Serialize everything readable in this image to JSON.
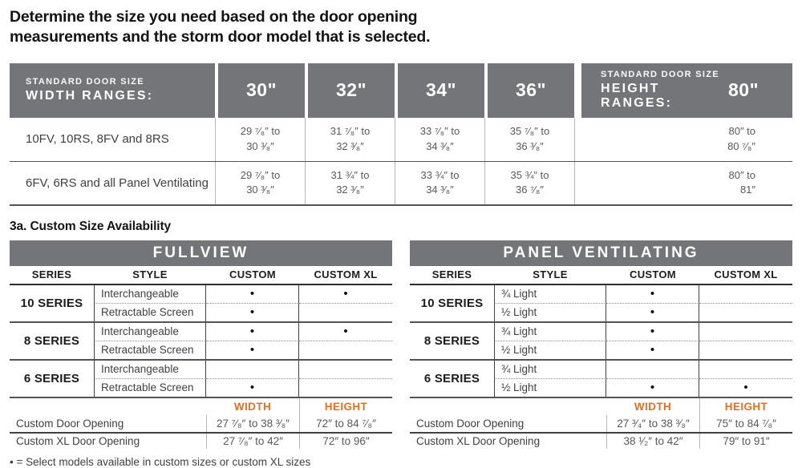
{
  "page": {
    "title": "Determine the size you need based on the door opening measurements and the storm door model that is selected.",
    "section_heading": "3a. Custom Size Availability",
    "footnote": "• = Select models available in custom sizes or custom XL sizes"
  },
  "colors": {
    "header_gray": "#737578",
    "accent_orange": "#e76f23"
  },
  "standard_table": {
    "width_header": {
      "line1": "STANDARD DOOR SIZE",
      "line2": "WIDTH RANGES:"
    },
    "width_columns": [
      "30\"",
      "32\"",
      "34\"",
      "36\""
    ],
    "height_header": {
      "line1": "STANDARD DOOR SIZE",
      "line2": "HEIGHT RANGES:"
    },
    "height_column": "80\"",
    "rows": [
      {
        "label": "10FV, 10RS, 8FV and 8RS",
        "cells": [
          {
            "line1": "29 ⁷⁄₈″ to",
            "line2": "30 ³⁄₈″"
          },
          {
            "line1": "31 ⁷⁄₈″ to",
            "line2": "32 ³⁄₈″"
          },
          {
            "line1": "33 ⁷⁄₈″ to",
            "line2": "34 ³⁄₈″"
          },
          {
            "line1": "35 ⁷⁄₈″ to",
            "line2": "36 ³⁄₈″"
          }
        ],
        "height": {
          "line1": "80″ to",
          "line2": "80 ⁷⁄₈″"
        }
      },
      {
        "label": "6FV, 6RS and all Panel Ventilating",
        "cells": [
          {
            "line1": "29 ⁷⁄₈″ to",
            "line2": "30 ³⁄₈″"
          },
          {
            "line1": "31 ¾″ to",
            "line2": "32 ³⁄₈″"
          },
          {
            "line1": "33 ¾″ to",
            "line2": "34 ³⁄₈″"
          },
          {
            "line1": "35 ¾″ to",
            "line2": "36 ⁷⁄₈″"
          }
        ],
        "height": {
          "line1": "80″ to",
          "line2": "81″"
        }
      }
    ]
  },
  "custom_tables": [
    {
      "title": "FULLVIEW",
      "columns": [
        "SERIES",
        "STYLE",
        "CUSTOM",
        "CUSTOM XL"
      ],
      "groups": [
        {
          "series": "10 SERIES",
          "rows": [
            {
              "style": "Interchangeable",
              "custom": "•",
              "custom_xl": "•"
            },
            {
              "style": "Retractable Screen",
              "custom": "•",
              "custom_xl": ""
            }
          ]
        },
        {
          "series": "8 SERIES",
          "rows": [
            {
              "style": "Interchangeable",
              "custom": "•",
              "custom_xl": "•"
            },
            {
              "style": "Retractable Screen",
              "custom": "•",
              "custom_xl": ""
            }
          ]
        },
        {
          "series": "6 SERIES",
          "rows": [
            {
              "style": "Interchangeable",
              "custom": "",
              "custom_xl": ""
            },
            {
              "style": "Retractable Screen",
              "custom": "•",
              "custom_xl": ""
            }
          ]
        }
      ],
      "footer": {
        "width_label": "WIDTH",
        "height_label": "HEIGHT",
        "rows": [
          {
            "label": "Custom Door Opening",
            "width": "27 ⁷⁄₈″ to 38 ³⁄₈″",
            "height": "72″ to 84 ⁷⁄₈″"
          },
          {
            "label": "Custom XL Door Opening",
            "width": "27 ⁷⁄₈″ to 42″",
            "height": "72″ to 96″"
          }
        ]
      }
    },
    {
      "title": "PANEL VENTILATING",
      "columns": [
        "SERIES",
        "STYLE",
        "CUSTOM",
        "CUSTOM XL"
      ],
      "groups": [
        {
          "series": "10 SERIES",
          "rows": [
            {
              "style": "¾ Light",
              "custom": "•",
              "custom_xl": ""
            },
            {
              "style": "½ Light",
              "custom": "•",
              "custom_xl": ""
            }
          ]
        },
        {
          "series": "8 SERIES",
          "rows": [
            {
              "style": "¾ Light",
              "custom": "•",
              "custom_xl": ""
            },
            {
              "style": "½ Light",
              "custom": "•",
              "custom_xl": ""
            }
          ]
        },
        {
          "series": "6 SERIES",
          "rows": [
            {
              "style": "¾ Light",
              "custom": "",
              "custom_xl": ""
            },
            {
              "style": "½ Light",
              "custom": "•",
              "custom_xl": "•"
            }
          ]
        }
      ],
      "footer": {
        "width_label": "WIDTH",
        "height_label": "HEIGHT",
        "rows": [
          {
            "label": "Custom Door Opening",
            "width": "27 ³⁄₄″ to 38 ³⁄₈″",
            "height": "75″ to 84 ⁷⁄₈″"
          },
          {
            "label": "Custom XL Door Opening",
            "width": "38 ¹⁄₂″ to 42″",
            "height": "79″ to 91″"
          }
        ]
      }
    }
  ]
}
